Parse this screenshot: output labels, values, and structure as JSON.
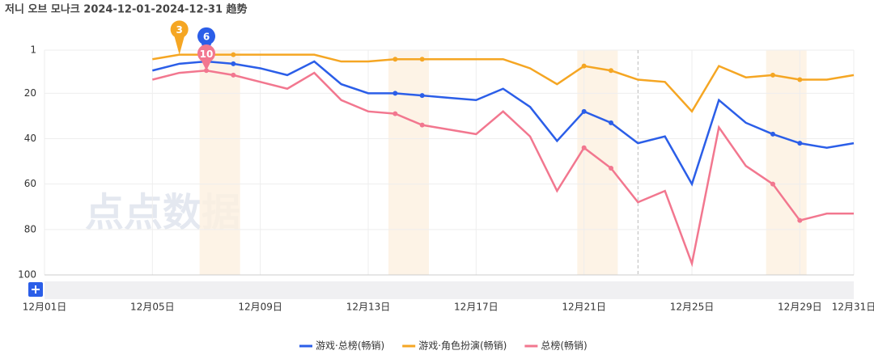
{
  "chart_data": {
    "type": "line",
    "title": "저니 오브 모나크 2024-12-01-2024-12-31 趋势",
    "watermark": "点点数据",
    "categories": [
      "12月01日",
      null,
      null,
      null,
      "12月05日",
      null,
      null,
      null,
      "12月09日",
      null,
      null,
      null,
      "12月13日",
      null,
      null,
      null,
      "12月17日",
      null,
      null,
      null,
      "12月21日",
      null,
      null,
      null,
      "12月25日",
      null,
      null,
      null,
      "12月29日",
      null,
      "12月31日"
    ],
    "series": [
      {
        "name": "游戏·总榜(畅销)",
        "color": "#2b5ee8",
        "values": [
          null,
          null,
          null,
          null,
          10,
          7,
          6,
          7,
          9,
          12,
          6,
          16,
          20,
          20,
          21,
          22,
          23,
          18,
          26,
          41,
          28,
          33,
          42,
          39,
          60,
          23,
          33,
          38,
          42,
          44,
          42
        ]
      },
      {
        "name": "游戏·角色扮演(畅销)",
        "color": "#f5a623",
        "values": [
          null,
          null,
          null,
          null,
          5,
          3,
          3,
          3,
          3,
          3,
          3,
          6,
          6,
          5,
          5,
          5,
          5,
          5,
          9,
          16,
          8,
          10,
          14,
          15,
          28,
          8,
          13,
          12,
          14,
          14,
          12
        ]
      },
      {
        "name": "总榜(畅销)",
        "color": "#f2778f",
        "values": [
          null,
          null,
          null,
          null,
          14,
          11,
          10,
          12,
          15,
          18,
          11,
          23,
          28,
          29,
          34,
          36,
          38,
          28,
          39,
          63,
          44,
          53,
          68,
          63,
          95,
          35,
          52,
          60,
          76,
          73,
          73
        ]
      }
    ],
    "ylim": [
      1,
      100
    ],
    "yreverse": true,
    "yticks": [
      1,
      20,
      40,
      60,
      80,
      100
    ],
    "grid": true
  }
}
